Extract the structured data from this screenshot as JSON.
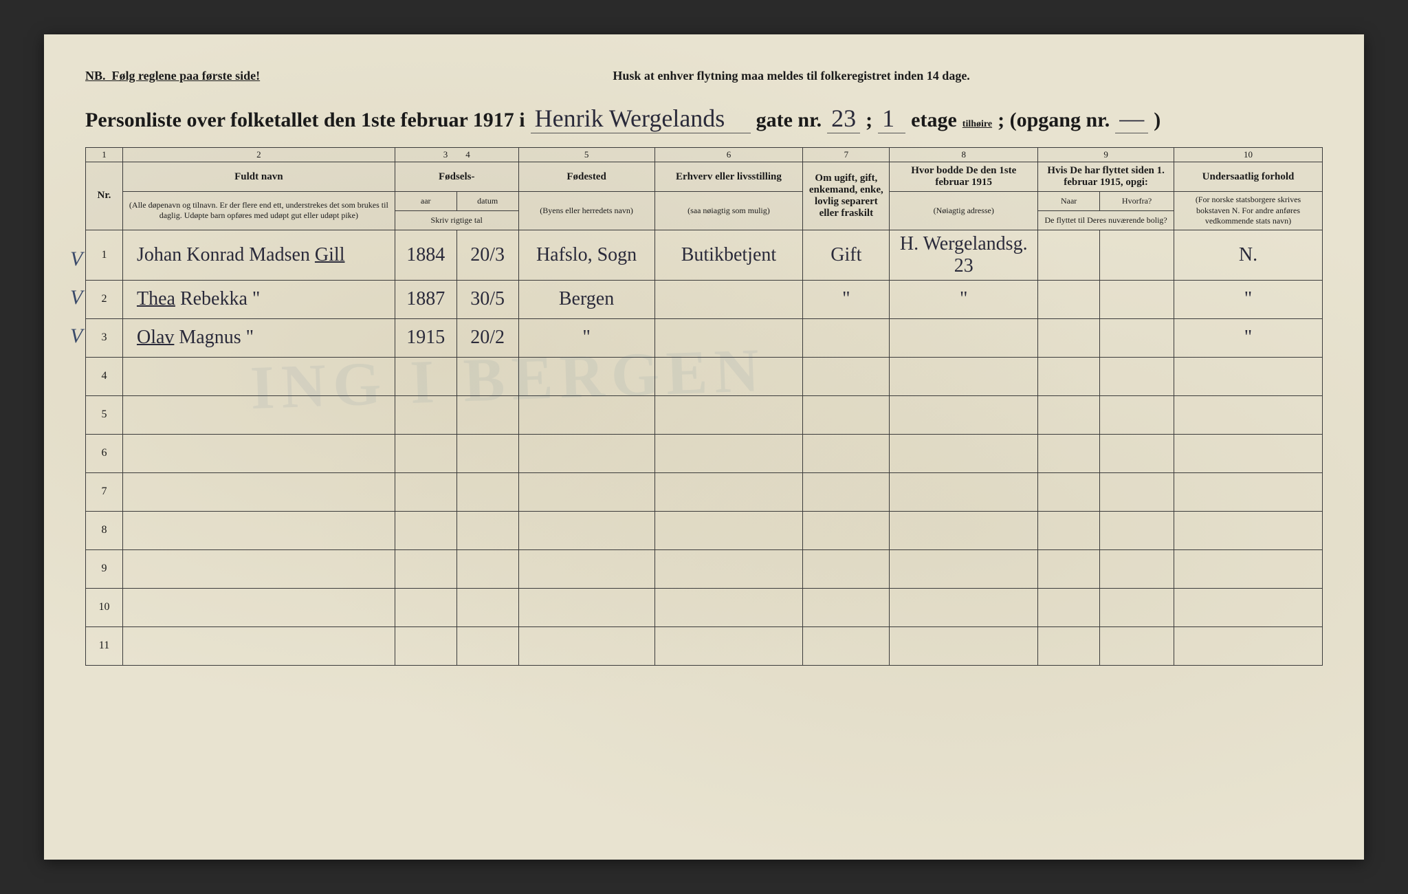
{
  "topbar": {
    "nb": "NB.",
    "left": "Følg reglene paa første side!",
    "center": "Husk at enhver flytning maa meldes til folkeregistret inden 14 dage."
  },
  "title": {
    "prefix": "Personliste over folketallet den 1ste februar 1917 i",
    "street_hw": "Henrik Wergelands",
    "gate_label": "gate nr.",
    "gate_nr": "23",
    "semicolon": ";",
    "etage_nr": "1",
    "etage_label": "etage",
    "tilhoire": "tilhøire",
    "opgang_label": "; (opgang nr.",
    "opgang_nr": "—",
    "close": ")"
  },
  "columns": {
    "nums": [
      "1",
      "2",
      "3",
      "4",
      "5",
      "6",
      "7",
      "8",
      "9",
      "10"
    ],
    "nr": "Nr.",
    "name": "Fuldt navn",
    "name_sub": "(Alle døpenavn og tilnavn. Er der flere end ett, understrekes det som brukes til daglig. Udøpte barn opføres med udøpt gut eller udøpt pike)",
    "birth": "Fødsels-",
    "birth_year": "aar",
    "birth_date": "datum",
    "birth_note": "Skriv rigtige tal",
    "birthplace": "Fødested",
    "birthplace_sub": "(Byens eller herredets navn)",
    "occupation": "Erhverv eller livsstilling",
    "occupation_sub": "(saa nøiagtig som mulig)",
    "marital": "Om ugift, gift, enkemand, enke, lovlig separert eller fraskilt",
    "addr1915": "Hvor bodde De den 1ste februar 1915",
    "addr1915_sub": "(Nøiagtig adresse)",
    "moved_head": "Hvis De har flyttet siden 1. februar 1915, opgi:",
    "moved_when": "Naar",
    "moved_from": "Hvorfra?",
    "moved_note": "De flyttet til Deres nuværende bolig?",
    "citizen": "Undersaatlig forhold",
    "citizen_sub": "(For norske statsborgere skrives bokstaven N. For andre anføres vedkommende stats navn)"
  },
  "rows": [
    {
      "check": "V",
      "nr": "1",
      "name": "Johan Konrad Madsen Gill",
      "name_underlined": "Gill",
      "year": "1884",
      "date": "20/3",
      "birthplace": "Hafslo, Sogn",
      "occupation": "Butikbetjent",
      "marital": "Gift",
      "addr1915": "H. Wergelandsg. 23",
      "moved_when": "",
      "moved_from": "",
      "citizen": "N."
    },
    {
      "check": "V",
      "nr": "2",
      "name": "Thea Rebekka   \"",
      "name_underlined": "Thea",
      "year": "1887",
      "date": "30/5",
      "birthplace": "Bergen",
      "occupation": "",
      "marital": "\"",
      "addr1915": "\"",
      "moved_when": "",
      "moved_from": "",
      "citizen": "\""
    },
    {
      "check": "V",
      "nr": "3",
      "name": "Olav Magnus   \"",
      "name_underlined": "Olav",
      "year": "1915",
      "date": "20/2",
      "birthplace": "\"",
      "occupation": "",
      "marital": "",
      "addr1915": "",
      "moved_when": "",
      "moved_from": "",
      "citizen": "\""
    }
  ],
  "empty_rows": [
    "4",
    "5",
    "6",
    "7",
    "8",
    "9",
    "10",
    "11"
  ],
  "bleed": "ING I BERGEN",
  "style": {
    "paper_bg": "#e8e3d0",
    "ink": "#1a1a1a",
    "handwriting": "#2a2a3a",
    "border": "#3a3a3a",
    "check_color": "#3a4a6a"
  }
}
